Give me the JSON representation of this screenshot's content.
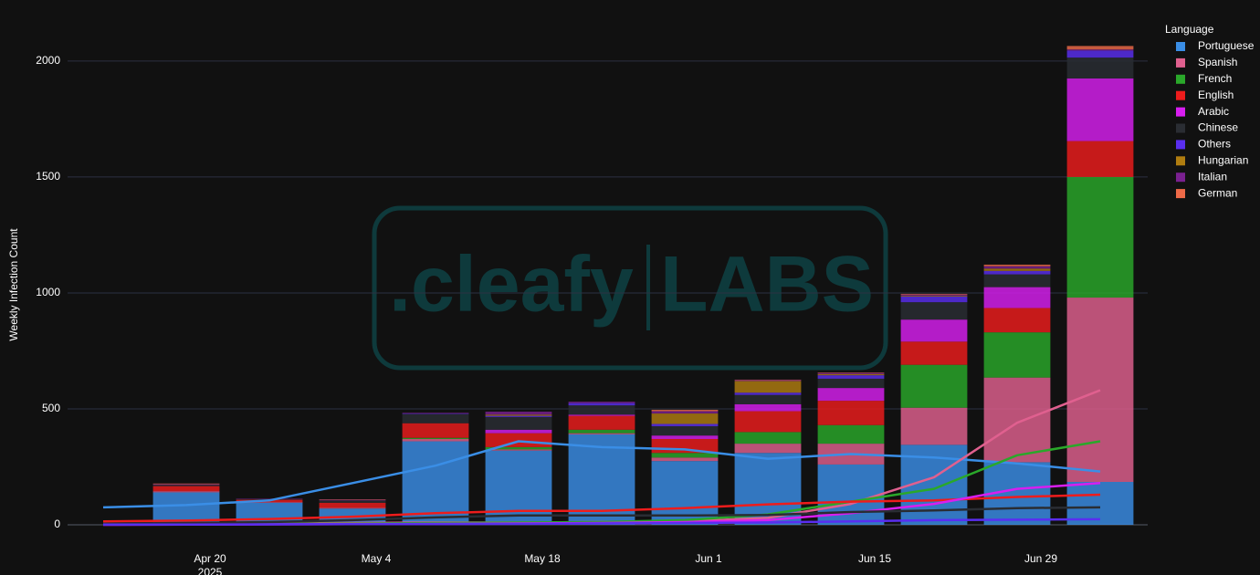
{
  "chart_data": {
    "type": "bar",
    "watermark": {
      "left": ".cleafy",
      "right": "LABS"
    },
    "y_label": "Weekly Infection Count",
    "legend_title": "Language",
    "legend_position": "right",
    "grid": true,
    "x": [
      "2025-04-11",
      "2025-04-18",
      "2025-04-25",
      "2025-05-02",
      "2025-05-09",
      "2025-05-16",
      "2025-05-23",
      "2025-05-30",
      "2025-06-06",
      "2025-06-13",
      "2025-06-20",
      "2025-06-27",
      "2025-07-04"
    ],
    "xlim": [
      "2025-04-08",
      "2025-07-08"
    ],
    "xticks": [
      {
        "value": "2025-04-20",
        "label": "Apr 20"
      },
      {
        "value": "2025-05-04",
        "label": "May 4"
      },
      {
        "value": "2025-05-18",
        "label": "May 18"
      },
      {
        "value": "2025-06-01",
        "label": "Jun 1"
      },
      {
        "value": "2025-06-15",
        "label": "Jun 15"
      },
      {
        "value": "2025-06-29",
        "label": "Jun 29"
      }
    ],
    "xtick_year": "2025",
    "ylim": [
      0,
      2220
    ],
    "yticks": [
      0,
      500,
      1000,
      1500,
      2000
    ],
    "series": [
      {
        "name": "Portuguese",
        "color": "#3a8ee6",
        "values": [
          0,
          140,
          95,
          70,
          360,
          320,
          390,
          275,
          310,
          260,
          345,
          270,
          185
        ],
        "trend": [
          75,
          85,
          105,
          180,
          255,
          360,
          335,
          325,
          285,
          305,
          290,
          265,
          230
        ]
      },
      {
        "name": "Spanish",
        "color": "#e0608f",
        "values": [
          0,
          5,
          3,
          3,
          10,
          5,
          5,
          15,
          40,
          90,
          160,
          365,
          795
        ],
        "trend": [
          2,
          3,
          5,
          8,
          10,
          10,
          12,
          15,
          30,
          90,
          205,
          440,
          580
        ]
      },
      {
        "name": "French",
        "color": "#2aa82a",
        "values": [
          0,
          0,
          0,
          0,
          5,
          10,
          15,
          20,
          50,
          80,
          185,
          195,
          520
        ],
        "trend": [
          2,
          3,
          4,
          5,
          8,
          10,
          12,
          20,
          45,
          100,
          155,
          300,
          360
        ]
      },
      {
        "name": "English",
        "color": "#ee1c1c",
        "values": [
          0,
          22,
          10,
          22,
          63,
          60,
          60,
          60,
          90,
          105,
          100,
          105,
          155
        ],
        "trend": [
          15,
          18,
          25,
          35,
          50,
          60,
          60,
          72,
          88,
          100,
          105,
          120,
          130
        ]
      },
      {
        "name": "Arabic",
        "color": "#d81ef0",
        "values": [
          0,
          0,
          0,
          0,
          0,
          15,
          5,
          15,
          30,
          55,
          95,
          90,
          270
        ],
        "trend": [
          0,
          1,
          2,
          3,
          4,
          6,
          8,
          12,
          20,
          50,
          90,
          155,
          180
        ]
      },
      {
        "name": "Chinese",
        "color": "#2a2d33",
        "values": [
          0,
          5,
          3,
          10,
          40,
          55,
          40,
          40,
          40,
          40,
          75,
          55,
          90
        ],
        "trend": [
          5,
          8,
          12,
          20,
          32,
          40,
          40,
          40,
          42,
          55,
          62,
          72,
          75
        ]
      },
      {
        "name": "Others",
        "color": "#5a2ef0",
        "values": [
          0,
          0,
          0,
          0,
          2,
          5,
          10,
          10,
          10,
          15,
          25,
          15,
          30
        ],
        "trend": [
          1,
          1,
          2,
          3,
          3,
          4,
          6,
          8,
          10,
          15,
          20,
          22,
          24
        ]
      },
      {
        "name": "Hungarian",
        "color": "#b07d10",
        "values": [
          0,
          0,
          0,
          0,
          0,
          5,
          0,
          45,
          50,
          5,
          3,
          10,
          0
        ]
      },
      {
        "name": "Italian",
        "color": "#7a2090",
        "values": [
          0,
          3,
          2,
          3,
          3,
          13,
          6,
          10,
          4,
          5,
          5,
          10,
          5
        ]
      },
      {
        "name": "German",
        "color": "#ee6a48",
        "values": [
          0,
          3,
          0,
          2,
          0,
          0,
          0,
          6,
          2,
          2,
          3,
          7,
          15
        ]
      }
    ]
  }
}
